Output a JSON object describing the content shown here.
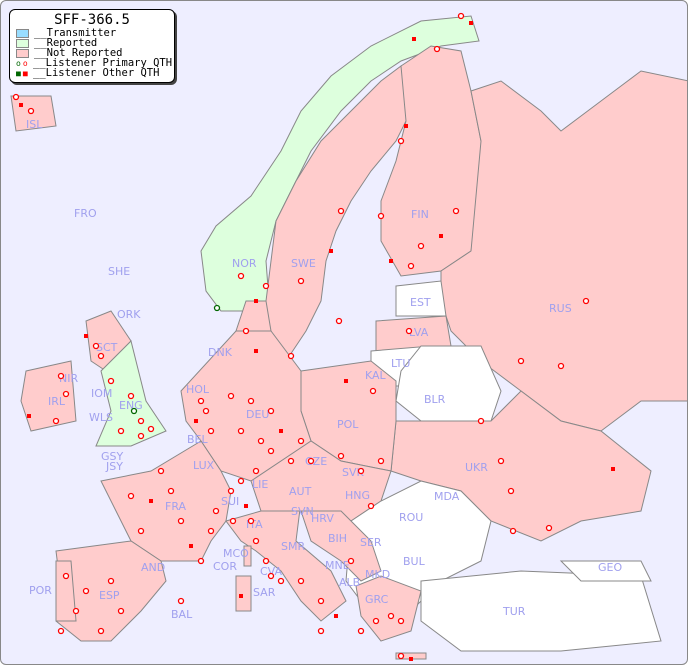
{
  "legend": {
    "title": "SFF-366.5",
    "items": [
      {
        "label": "__Transmitter",
        "color": "#99ddff"
      },
      {
        "label": "__Reported",
        "color": "#ddffdd"
      },
      {
        "label": "__Not Reported",
        "color": "#ffcccc"
      },
      {
        "label": "__Listener Primary QTH"
      },
      {
        "label": "__Listener Other QTH"
      }
    ]
  },
  "colors": {
    "ocean": "#eeeeff",
    "reported": "#ddffdd",
    "not_reported": "#ffcccc",
    "no_data": "#ffffff",
    "listener": "#ff0000",
    "listener_reported": "#006600"
  },
  "countries": [
    "ISL",
    "FRO",
    "SHE",
    "ORK",
    "NOR",
    "SWE",
    "FIN",
    "EST",
    "LVA",
    "LTU",
    "KAL",
    "RUS",
    "BLR",
    "DNK",
    "HOL",
    "SCT",
    "NIR",
    "IRL",
    "IOM",
    "ENG",
    "WLS",
    "GSY",
    "JSY",
    "BEL",
    "LUX",
    "DEU",
    "POL",
    "CZE",
    "SVK",
    "UKR",
    "MDA",
    "ROU",
    "HNG",
    "AUT",
    "LIE",
    "SUI",
    "FRA",
    "SVN",
    "HRV",
    "BIH",
    "SER",
    "MNE",
    "ALB",
    "MKD",
    "BUL",
    "GRC",
    "TUR",
    "GEO",
    "ITA",
    "SMR",
    "MCO",
    "COR",
    "CVA",
    "SAR",
    "AND",
    "POR",
    "ESP",
    "BAL"
  ]
}
